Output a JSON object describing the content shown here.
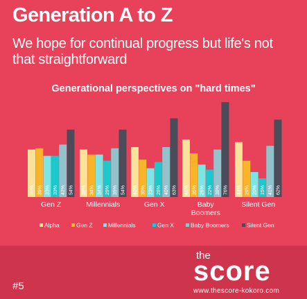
{
  "header": {
    "title": "Generation A to Z",
    "subtitle": "We hope for continual progress but life's not that straightforward"
  },
  "colors": {
    "background": "#e8415a",
    "footer": "#cf344d",
    "series": [
      "#fbe29a",
      "#f8b52a",
      "#7de6e5",
      "#1cc8cc",
      "#94c2cc",
      "#4b4c5a"
    ]
  },
  "chart_data": {
    "type": "bar",
    "title": "Generational perspectives on \"hard times\"",
    "categories": [
      "Gen Z",
      "Millennials",
      "Gen X",
      "Baby\nBoomers",
      "Silent Gen"
    ],
    "series": [
      {
        "name": "Alpha",
        "values": [
          38,
          38,
          40,
          46,
          44
        ]
      },
      {
        "name": "Gen Z",
        "values": [
          39,
          34,
          30,
          35,
          29
        ]
      },
      {
        "name": "Millennials",
        "values": [
          33,
          34,
          23,
          26,
          20
        ]
      },
      {
        "name": "Gen X",
        "values": [
          33,
          29,
          28,
          22,
          15
        ]
      },
      {
        "name": "Baby Boomers",
        "values": [
          42,
          39,
          40,
          38,
          41
        ]
      },
      {
        "name": "Silent Gen",
        "values": [
          54,
          54,
          63,
          76,
          62
        ]
      }
    ],
    "ylim": [
      0,
      80
    ],
    "legend": "bottom",
    "grid": false
  },
  "footer": {
    "page_number": "#5",
    "brand_the": "the",
    "brand_score": "score",
    "brand_url": "www.thescore-kokoro.com"
  }
}
